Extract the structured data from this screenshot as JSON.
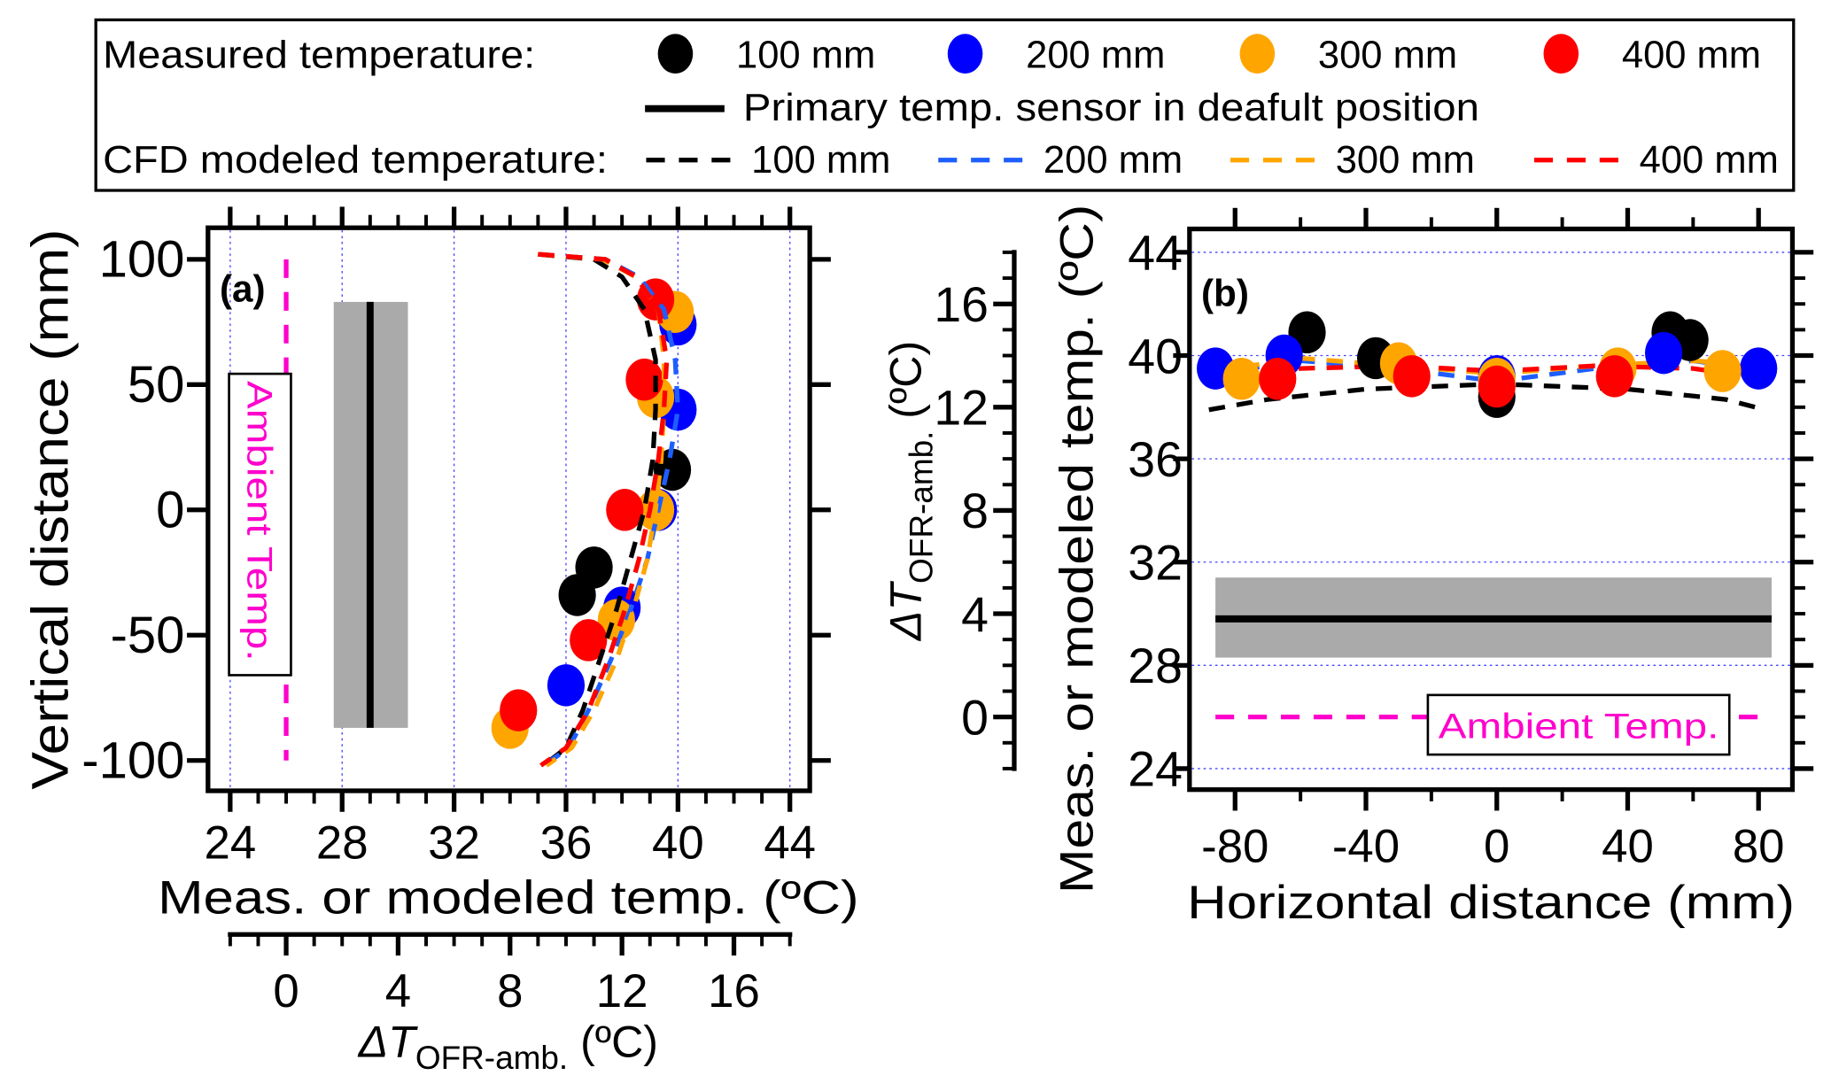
{
  "colors": {
    "100 mm": "#000000",
    "200 mm": "#0000ff",
    "300 mm": "#ffa500",
    "400 mm": "#ff0000",
    "cfd_200": "#1e5eff",
    "ambient": "#ff00cc",
    "band": "#aaaaaa",
    "grid": "#4444ff"
  },
  "legend": {
    "measured_label": "Measured temperature:",
    "primary_label": "Primary temp. sensor in deafult position",
    "cfd_label": "CFD modeled temperature:",
    "entries": [
      "100 mm",
      "200 mm",
      "300 mm",
      "400 mm"
    ]
  },
  "chart_data": [
    {
      "type": "scatter",
      "panel_label": "(a)",
      "xlabel": "Meas. or modeled temp. (ºC)",
      "ylabel": "Vertical distance (mm)",
      "xlim": [
        24,
        44
      ],
      "ylim": [
        -100,
        100
      ],
      "xticks": [
        "24",
        "28",
        "32",
        "36",
        "40",
        "44"
      ],
      "yticks": [
        "100",
        "50",
        "0",
        "-50",
        "-100"
      ],
      "secondary_x": {
        "label_main": "ΔT",
        "label_sub": "OFR-amb.",
        "label_unit": " (ºC)",
        "ticks": [
          "0",
          "4",
          "8",
          "12",
          "16"
        ],
        "offset": 26
      },
      "grid": "vertical dotted",
      "ambient": {
        "label": "Ambient Temp.",
        "value": 26
      },
      "primary_sensor": {
        "value": 29.0,
        "band": [
          27.7,
          30.35
        ],
        "range": [
          -87,
          83
        ]
      },
      "measured": [
        {
          "name": "100 mm",
          "points": [
            [
              39.8,
              16
            ],
            [
              37.0,
              -23
            ],
            [
              36.4,
              -34
            ]
          ]
        },
        {
          "name": "200 mm",
          "points": [
            [
              40.0,
              74
            ],
            [
              40.0,
              40
            ],
            [
              39.3,
              0
            ],
            [
              38.0,
              -39
            ],
            [
              36.0,
              -70
            ]
          ]
        },
        {
          "name": "300 mm",
          "points": [
            [
              39.9,
              79
            ],
            [
              39.2,
              45
            ],
            [
              39.2,
              0
            ],
            [
              37.8,
              -44
            ],
            [
              34.0,
              -87
            ]
          ]
        },
        {
          "name": "400 mm",
          "points": [
            [
              39.2,
              84
            ],
            [
              38.8,
              52
            ],
            [
              38.1,
              0
            ],
            [
              36.8,
              -52
            ],
            [
              34.3,
              -80
            ]
          ]
        }
      ],
      "cfd": [
        {
          "name": "100 mm",
          "points": [
            [
              35,
              102
            ],
            [
              37,
              100
            ],
            [
              38,
              93
            ],
            [
              38.8,
              80
            ],
            [
              39.2,
              60
            ],
            [
              39.2,
              40
            ],
            [
              39.1,
              20
            ],
            [
              38.8,
              0
            ],
            [
              38.3,
              -20
            ],
            [
              37.8,
              -40
            ],
            [
              37.2,
              -60
            ],
            [
              36.6,
              -80
            ],
            [
              36.0,
              -95
            ],
            [
              35.2,
              -102
            ]
          ]
        },
        {
          "name": "200 mm",
          "points": [
            [
              35,
              102
            ],
            [
              37.4,
              100
            ],
            [
              38.6,
              93
            ],
            [
              39.5,
              80
            ],
            [
              39.9,
              60
            ],
            [
              40.0,
              40
            ],
            [
              39.7,
              20
            ],
            [
              39.3,
              0
            ],
            [
              38.9,
              -20
            ],
            [
              38.3,
              -40
            ],
            [
              37.6,
              -60
            ],
            [
              36.8,
              -80
            ],
            [
              36.1,
              -95
            ],
            [
              35.2,
              -102
            ]
          ]
        },
        {
          "name": "300 mm",
          "points": [
            [
              35,
              102
            ],
            [
              37.3,
              100
            ],
            [
              38.5,
              93
            ],
            [
              39.3,
              80
            ],
            [
              39.5,
              60
            ],
            [
              39.5,
              40
            ],
            [
              39.4,
              20
            ],
            [
              39.2,
              0
            ],
            [
              38.9,
              -20
            ],
            [
              38.4,
              -40
            ],
            [
              37.8,
              -60
            ],
            [
              37.0,
              -80
            ],
            [
              36.2,
              -95
            ],
            [
              35.3,
              -102
            ]
          ]
        },
        {
          "name": "400 mm",
          "points": [
            [
              35,
              102
            ],
            [
              37.4,
              100
            ],
            [
              38.5,
              93
            ],
            [
              39.3,
              80
            ],
            [
              39.6,
              60
            ],
            [
              39.5,
              40
            ],
            [
              39.3,
              20
            ],
            [
              39.0,
              0
            ],
            [
              38.6,
              -20
            ],
            [
              38.1,
              -40
            ],
            [
              37.5,
              -60
            ],
            [
              36.8,
              -80
            ],
            [
              36.0,
              -95
            ],
            [
              35.1,
              -102
            ]
          ]
        }
      ]
    },
    {
      "type": "scatter",
      "panel_label": "(b)",
      "xlabel": "Horizontal distance (mm)",
      "ylabel": "Meas. or modeled temp. (ºC)",
      "xlim": [
        -90,
        90
      ],
      "ylim": [
        24,
        44
      ],
      "xticks": [
        "-80",
        "-40",
        "0",
        "40",
        "80"
      ],
      "yticks": [
        "44",
        "40",
        "36",
        "32",
        "28",
        "24"
      ],
      "secondary_y": {
        "label_main": "ΔT",
        "label_sub": "OFR-amb.",
        "label_unit": " (ºC)",
        "ticks": [
          "16",
          "12",
          "8",
          "4",
          "0"
        ],
        "offset": 26
      },
      "grid": "horizontal dotted",
      "ambient": {
        "label": "Ambient Temp.",
        "value": 26
      },
      "primary_sensor": {
        "value": 29.8,
        "band": [
          28.3,
          31.4
        ],
        "range": [
          -86,
          84
        ]
      },
      "measured": [
        {
          "name": "100 mm",
          "points": [
            [
              -58,
              40.9
            ],
            [
              -37,
              39.9
            ],
            [
              0,
              38.4
            ],
            [
              53,
              40.9
            ],
            [
              59,
              40.6
            ]
          ]
        },
        {
          "name": "200 mm",
          "points": [
            [
              -86,
              39.5
            ],
            [
              -65,
              40.0
            ],
            [
              0,
              39.2
            ],
            [
              51,
              40.1
            ],
            [
              80,
              39.5
            ]
          ]
        },
        {
          "name": "300 mm",
          "points": [
            [
              -78,
              39.1
            ],
            [
              -30,
              39.7
            ],
            [
              0,
              39.1
            ],
            [
              37,
              39.5
            ],
            [
              69,
              39.4
            ]
          ]
        },
        {
          "name": "400 mm",
          "points": [
            [
              -67,
              39.1
            ],
            [
              -26,
              39.2
            ],
            [
              0,
              38.8
            ],
            [
              36,
              39.2
            ]
          ]
        }
      ],
      "cfd": [
        {
          "name": "100 mm",
          "points": [
            [
              -88,
              37.9
            ],
            [
              -70,
              38.3
            ],
            [
              -40,
              38.7
            ],
            [
              0,
              38.9
            ],
            [
              40,
              38.7
            ],
            [
              70,
              38.3
            ],
            [
              82,
              37.9
            ]
          ]
        },
        {
          "name": "200 mm",
          "points": [
            [
              -86,
              39.3
            ],
            [
              -60,
              39.8
            ],
            [
              -30,
              39.5
            ],
            [
              0,
              39.0
            ],
            [
              30,
              39.5
            ],
            [
              60,
              39.8
            ],
            [
              82,
              39.4
            ]
          ]
        },
        {
          "name": "300 mm",
          "points": [
            [
              -86,
              39.4
            ],
            [
              -60,
              39.9
            ],
            [
              -30,
              39.6
            ],
            [
              0,
              39.3
            ],
            [
              30,
              39.6
            ],
            [
              60,
              39.8
            ],
            [
              82,
              39.6
            ]
          ]
        },
        {
          "name": "400 mm",
          "points": [
            [
              -86,
              39.0
            ],
            [
              -60,
              39.5
            ],
            [
              -30,
              39.6
            ],
            [
              0,
              39.4
            ],
            [
              30,
              39.6
            ],
            [
              60,
              39.5
            ],
            [
              82,
              39.1
            ]
          ]
        }
      ]
    }
  ]
}
